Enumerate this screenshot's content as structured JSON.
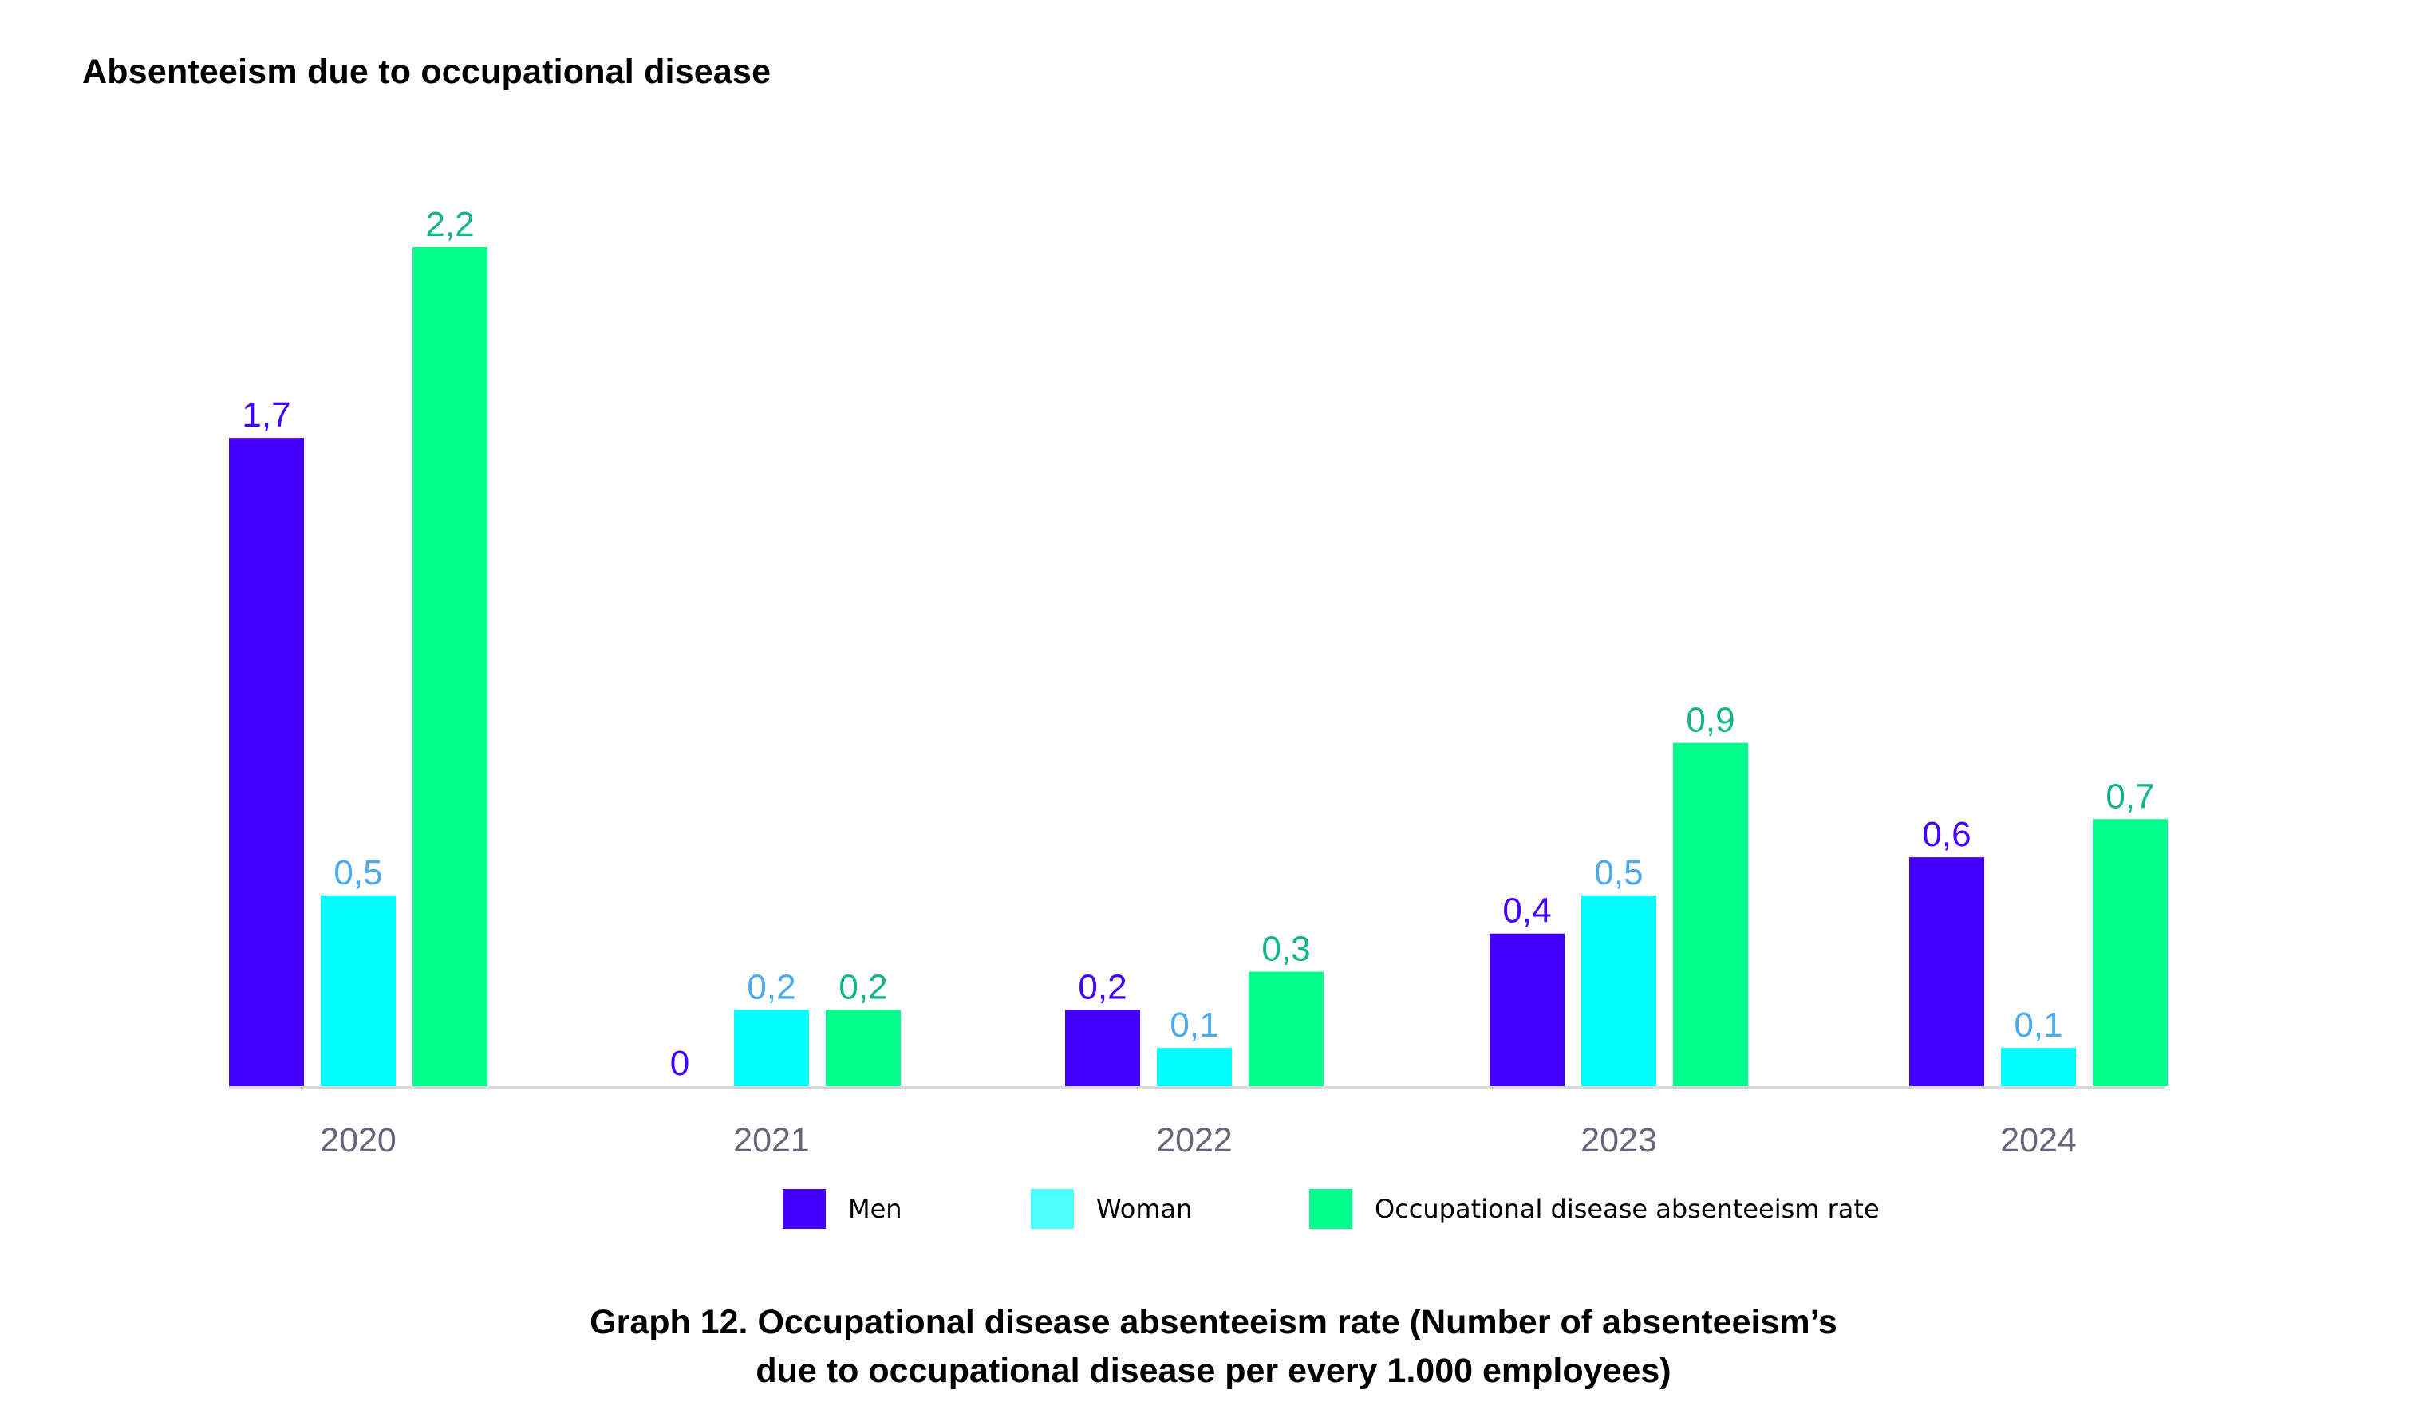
{
  "heading": "Absenteeism due to occupational disease",
  "caption": {
    "line1": "Graph 12. Occupational disease absenteeism rate (Number of absenteeism’s",
    "line2": "due to occupational disease per every 1.000 employees)"
  },
  "chart_data": {
    "type": "bar",
    "title": "Absenteeism due to occupational disease",
    "xlabel": "",
    "ylabel": "",
    "ylim": [
      0,
      2.2
    ],
    "grid": false,
    "legend_position": "bottom",
    "categories": [
      "2020",
      "2021",
      "2022",
      "2023",
      "2024"
    ],
    "series": [
      {
        "name": "Men",
        "color": "#4400ff",
        "label_color": "#4400ff",
        "values": [
          1.7,
          0,
          0.2,
          0.4,
          0.6
        ],
        "labels": [
          "1,7",
          "0",
          "0,2",
          "0,4",
          "0,6"
        ]
      },
      {
        "name": "Woman",
        "color": "#00ffff",
        "legend_color": "#4dffff",
        "label_color": "#4aaaf0",
        "values": [
          0.5,
          0.2,
          0.1,
          0.5,
          0.1
        ],
        "labels": [
          "0,5",
          "0,2",
          "0,1",
          "0,5",
          "0,1"
        ]
      },
      {
        "name": "Occupational disease absenteeism rate",
        "color": "#00ff8c",
        "label_color": "#12b58a",
        "values": [
          2.2,
          0.2,
          0.3,
          0.9,
          0.7
        ],
        "labels": [
          "2,2",
          "0,2",
          "0,3",
          "0,9",
          "0,7"
        ]
      }
    ],
    "axis_color": "#d9d9d9",
    "tick_color": "#66667a"
  }
}
